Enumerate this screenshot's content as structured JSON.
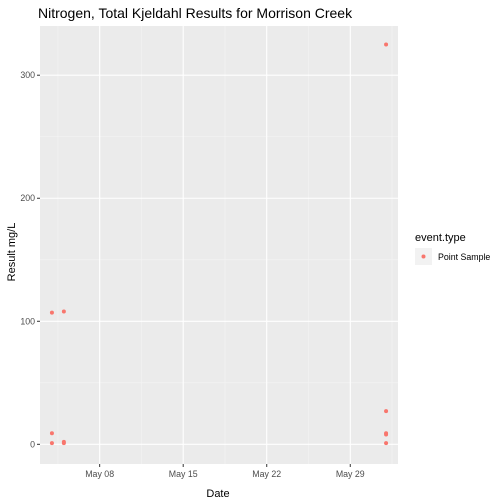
{
  "chart_data": {
    "type": "scatter",
    "title": "Nitrogen, Total Kjeldahl Results for Morrison Creek",
    "xlabel": "Date",
    "ylabel": "Result mg/L",
    "x_ticks": [
      "May 08",
      "May 15",
      "May 22",
      "May 29"
    ],
    "y_ticks": [
      0,
      100,
      200,
      300
    ],
    "xlim": [
      "2021-05-03",
      "2021-06-02"
    ],
    "ylim": [
      -16,
      340
    ],
    "grid": true,
    "legend_position": "right",
    "legend_title": "event.type",
    "series": [
      {
        "name": "Point Sample",
        "color": "#F8766D",
        "points": [
          {
            "x": "2021-05-04",
            "y": 107
          },
          {
            "x": "2021-05-04",
            "y": 9
          },
          {
            "x": "2021-05-04",
            "y": 1
          },
          {
            "x": "2021-05-05",
            "y": 108
          },
          {
            "x": "2021-05-05",
            "y": 2
          },
          {
            "x": "2021-05-05",
            "y": 1
          },
          {
            "x": "2021-06-01",
            "y": 325
          },
          {
            "x": "2021-06-01",
            "y": 27
          },
          {
            "x": "2021-06-01",
            "y": 9
          },
          {
            "x": "2021-06-01",
            "y": 8
          },
          {
            "x": "2021-06-01",
            "y": 1
          }
        ]
      }
    ]
  }
}
